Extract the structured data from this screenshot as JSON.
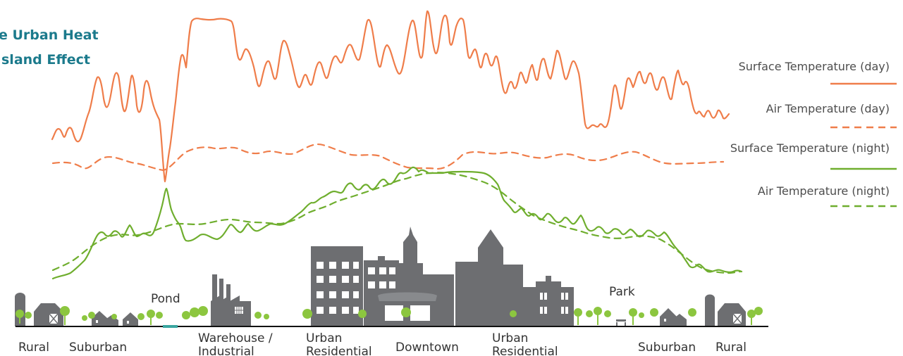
{
  "title": {
    "line1": "e Urban Heat",
    "line2": "sland Effect"
  },
  "legend": [
    {
      "label": "Surface Temperature (day)",
      "color": "#ef7d4a",
      "style": "solid"
    },
    {
      "label": "Air Temperature (day)",
      "color": "#ef7d4a",
      "style": "dashed"
    },
    {
      "label": "Surface Temperature (night)",
      "color": "#6fae2e",
      "style": "solid"
    },
    {
      "label": "Air Temperature (night)",
      "color": "#6fae2e",
      "style": "dashed"
    }
  ],
  "places": {
    "pond": "Pond",
    "park": "Park"
  },
  "zones": [
    {
      "line1": "Rural",
      "line2": ""
    },
    {
      "line1": "Suburban",
      "line2": ""
    },
    {
      "line1": "Warehouse /",
      "line2": "Industrial"
    },
    {
      "line1": "Urban",
      "line2": "Residential"
    },
    {
      "line1": "Downtown",
      "line2": ""
    },
    {
      "line1": "Urban",
      "line2": "Residential"
    },
    {
      "line1": "Suburban",
      "line2": ""
    },
    {
      "line1": "Rural",
      "line2": ""
    }
  ],
  "colors": {
    "title": "#1b7a8c",
    "day": "#ef7d4a",
    "night": "#6fae2e",
    "building": "#6d6e71",
    "tree": "#8cc63f",
    "ground": "#111111",
    "water": "#3aa6a0"
  },
  "icons": [
    "silo-icon",
    "barn-icon",
    "house-icon",
    "tree-icon",
    "factory-icon",
    "office-tower-icon",
    "bench-icon"
  ]
}
